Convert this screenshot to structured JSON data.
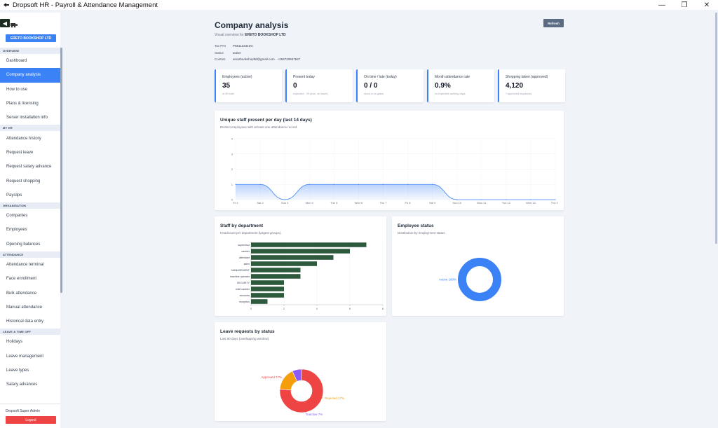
{
  "window": {
    "title": "Dropsoft HR - Payroll & Attendance Management",
    "controls": {
      "minimize": "—",
      "restore": "❐",
      "close": "✕"
    }
  },
  "sidebar": {
    "company_button": "ERETO BOOKSHOP LTD",
    "user": "Dropsoft Super Admin",
    "logout": "Logout",
    "sections": [
      {
        "title": "OVERVIEW",
        "items": [
          {
            "label": "Dashboard",
            "active": false
          },
          {
            "label": "Company analysis",
            "active": true
          },
          {
            "label": "How to use",
            "active": false
          },
          {
            "label": "Plans & licensing",
            "active": false
          },
          {
            "label": "Server installation info",
            "active": false
          }
        ]
      },
      {
        "title": "MY HR",
        "items": [
          {
            "label": "Attendance history",
            "active": false
          },
          {
            "label": "Request leave",
            "active": false
          },
          {
            "label": "Request salary advance",
            "active": false
          },
          {
            "label": "Request shopping",
            "active": false
          },
          {
            "label": "Payslips",
            "active": false
          }
        ]
      },
      {
        "title": "ORGANISATION",
        "items": [
          {
            "label": "Companies",
            "active": false
          },
          {
            "label": "Employees",
            "active": false
          },
          {
            "label": "Opening balances",
            "active": false
          }
        ]
      },
      {
        "title": "ATTENDANCE",
        "items": [
          {
            "label": "Attendance terminal",
            "active": false
          },
          {
            "label": "Face enrollment",
            "active": false
          },
          {
            "label": "Bulk attendance",
            "active": false
          },
          {
            "label": "Manual attendance",
            "active": false
          },
          {
            "label": "Historical data entry",
            "active": false
          }
        ]
      },
      {
        "title": "LEAVE & TIME OFF",
        "items": [
          {
            "label": "Holidays",
            "active": false
          },
          {
            "label": "Leave management",
            "active": false
          },
          {
            "label": "Leave types",
            "active": false
          },
          {
            "label": "Salary advances",
            "active": false
          }
        ]
      }
    ]
  },
  "header": {
    "title": "Company analysis",
    "subtitle_prefix": "Visual overview for",
    "company": "ERETO BOOKSHOP LTD",
    "refresh": "Refresh",
    "info": [
      {
        "label": "Tax PIN",
        "value": "P051123442G"
      },
      {
        "label": "Status",
        "value": "active"
      },
      {
        "label": "Contact",
        "value": "eretobookshopltd@gmail.com · +254720847527"
      }
    ]
  },
  "kpis": [
    {
      "label": "Employees (active)",
      "value": "35",
      "sub": "of 35 total"
    },
    {
      "label": "Present today",
      "value": "0",
      "sub": "expected · 29 (excl. on leave)"
    },
    {
      "label": "On time / late (today)",
      "value": "0 / 0",
      "sub": "clock-in vs grace"
    },
    {
      "label": "Month attendance rate",
      "value": "0.9%",
      "sub": "vs expected working days"
    },
    {
      "label": "Shopping taken (approved)",
      "value": "4,120",
      "sub": "7 approved request(s)"
    }
  ],
  "charts": {
    "daily": {
      "title": "Unique staff present per day (last 14 days)",
      "subtitle": "Distinct employees with at least one attendance record.",
      "chart_data": {
        "type": "area",
        "categories": [
          "Fri 1",
          "Sat 2",
          "Sun 3",
          "Mon 4",
          "Tue 5",
          "Wed 6",
          "Thu 7",
          "Fri 8",
          "Sat 9",
          "Sun 10",
          "Mon 11",
          "Tue 12",
          "Wed 13",
          "Thu 14"
        ],
        "values": [
          1,
          1,
          0,
          1,
          1,
          1,
          1,
          1,
          1,
          0,
          0,
          0,
          0,
          0
        ],
        "ylim": [
          0,
          4
        ],
        "yticks": [
          "0",
          "1",
          "2",
          "3",
          "4"
        ],
        "color": "#3b82f6"
      }
    },
    "department": {
      "title": "Staff by department",
      "subtitle": "Headcount per department (largest groups).",
      "chart_data": {
        "type": "bar",
        "orientation": "horizontal",
        "categories": [
          "supervisor",
          "cashier",
          "attendant",
          "sales",
          "MANAGEMENT",
          "machine operator",
          "SECURITY",
          "chief cashier",
          "accounts",
          "reception"
        ],
        "values": [
          7,
          6,
          5,
          4,
          3,
          3,
          2,
          2,
          2,
          1
        ],
        "xlim": [
          0,
          8
        ],
        "xticks": [
          "0",
          "2",
          "4",
          "6",
          "8"
        ],
        "color": "#2d5a3d"
      }
    },
    "status": {
      "title": "Employee status",
      "subtitle": "Distribution by employment status.",
      "chart_data": {
        "type": "pie",
        "donut": true,
        "slices": [
          {
            "label": "Active 100%",
            "value": 100,
            "color": "#3b82f6"
          }
        ]
      }
    },
    "leave": {
      "title": "Leave requests by status",
      "subtitle": "Last 90 days (overlapping window).",
      "chart_data": {
        "type": "pie",
        "donut": true,
        "slices": [
          {
            "label": "Approved 77%",
            "value": 77,
            "color": "#ef4444"
          },
          {
            "label": "Rejected 17%",
            "value": 17,
            "color": "#f59e0b"
          },
          {
            "label": "Inactive 7%",
            "value": 7,
            "color": "#8b5cf6"
          }
        ]
      }
    }
  }
}
